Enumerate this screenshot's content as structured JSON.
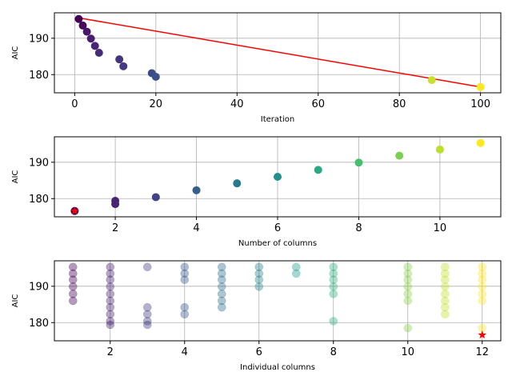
{
  "chart_data": [
    {
      "type": "scatter",
      "title": "",
      "xlabel": "Iteration",
      "ylabel": "AIC",
      "xlim": [
        -5,
        105
      ],
      "ylim": [
        175,
        197
      ],
      "xticks": [
        0,
        20,
        40,
        60,
        80,
        100
      ],
      "yticks": [
        180,
        190
      ],
      "grid": true,
      "colormap": "viridis",
      "points": [
        {
          "x": 1,
          "y": 195.3,
          "c": 0.0
        },
        {
          "x": 2,
          "y": 193.5,
          "c": 0.03
        },
        {
          "x": 3,
          "y": 191.8,
          "c": 0.06
        },
        {
          "x": 4,
          "y": 189.9,
          "c": 0.08
        },
        {
          "x": 5,
          "y": 187.9,
          "c": 0.1
        },
        {
          "x": 6,
          "y": 186.0,
          "c": 0.12
        },
        {
          "x": 11,
          "y": 184.2,
          "c": 0.15
        },
        {
          "x": 12,
          "y": 182.3,
          "c": 0.17
        },
        {
          "x": 19,
          "y": 180.4,
          "c": 0.23
        },
        {
          "x": 20,
          "y": 179.4,
          "c": 0.25
        },
        {
          "x": 88,
          "y": 178.5,
          "c": 0.92
        },
        {
          "x": 100,
          "y": 176.6,
          "c": 1.0
        }
      ],
      "trend_line": {
        "x": [
          1,
          100
        ],
        "y": [
          195.6,
          176.6
        ],
        "color": "#ff0000"
      }
    },
    {
      "type": "scatter",
      "title": "",
      "xlabel": "Number of columns",
      "ylabel": "AIC",
      "xlim": [
        0.5,
        11.5
      ],
      "ylim": [
        175,
        197
      ],
      "xticks": [
        2,
        4,
        6,
        8,
        10
      ],
      "yticks": [
        180,
        190
      ],
      "grid": true,
      "colormap": "viridis",
      "points": [
        {
          "x": 1,
          "y": 176.6,
          "c": 0.0
        },
        {
          "x": 2,
          "y": 178.5,
          "c": 0.1
        },
        {
          "x": 2,
          "y": 179.4,
          "c": 0.1
        },
        {
          "x": 3,
          "y": 180.4,
          "c": 0.2
        },
        {
          "x": 4,
          "y": 182.3,
          "c": 0.3
        },
        {
          "x": 5,
          "y": 184.2,
          "c": 0.4
        },
        {
          "x": 6,
          "y": 186.0,
          "c": 0.5
        },
        {
          "x": 7,
          "y": 187.9,
          "c": 0.6
        },
        {
          "x": 8,
          "y": 189.9,
          "c": 0.7
        },
        {
          "x": 9,
          "y": 191.8,
          "c": 0.8
        },
        {
          "x": 10,
          "y": 193.5,
          "c": 0.9
        },
        {
          "x": 11,
          "y": 195.3,
          "c": 1.0
        }
      ],
      "best_marker": {
        "x": 1,
        "y": 176.6,
        "color": "#ff0000",
        "shape": "star"
      }
    },
    {
      "type": "scatter",
      "title": "",
      "xlabel": "Individual columns",
      "ylabel": "AIC",
      "xlim": [
        0.5,
        12.5
      ],
      "ylim": [
        175,
        197
      ],
      "xticks": [
        2,
        4,
        6,
        8,
        10,
        12
      ],
      "yticks": [
        180,
        190
      ],
      "grid": true,
      "colormap": "viridis",
      "alpha": 0.4,
      "columns": [
        {
          "x": 1,
          "c": 0.0,
          "y": [
            195.3,
            193.5,
            191.8,
            189.9,
            187.9,
            186.0
          ]
        },
        {
          "x": 2,
          "c": 0.09,
          "y": [
            195.3,
            193.5,
            191.8,
            189.9,
            187.9,
            186.0,
            184.2,
            182.3,
            180.4,
            179.4
          ]
        },
        {
          "x": 3,
          "c": 0.18,
          "y": [
            195.3,
            184.2,
            182.3,
            180.4,
            179.4
          ]
        },
        {
          "x": 4,
          "c": 0.27,
          "y": [
            195.3,
            193.5,
            191.8,
            184.2,
            182.3
          ]
        },
        {
          "x": 5,
          "c": 0.36,
          "y": [
            195.3,
            193.5,
            191.8,
            189.9,
            187.9,
            186.0,
            184.2
          ]
        },
        {
          "x": 6,
          "c": 0.45,
          "y": [
            195.3,
            193.5,
            191.8,
            189.9
          ]
        },
        {
          "x": 7,
          "c": 0.55,
          "y": [
            195.3,
            193.5
          ]
        },
        {
          "x": 8,
          "c": 0.64,
          "y": [
            195.3,
            193.5,
            191.8,
            189.9,
            187.9,
            180.4
          ]
        },
        {
          "x": 10,
          "c": 0.82,
          "y": [
            195.3,
            193.5,
            191.8,
            189.9,
            187.9,
            186.0,
            178.5
          ]
        },
        {
          "x": 11,
          "c": 0.91,
          "y": [
            195.3,
            193.5,
            191.8,
            189.9,
            187.9,
            186.0,
            184.2,
            182.3
          ]
        },
        {
          "x": 12,
          "c": 1.0,
          "y": [
            195.3,
            193.5,
            191.8,
            189.9,
            187.9,
            186.0,
            178.5
          ]
        }
      ],
      "best_marker": {
        "x": 12,
        "y": 176.6,
        "color": "#ff0000",
        "shape": "star"
      }
    }
  ]
}
